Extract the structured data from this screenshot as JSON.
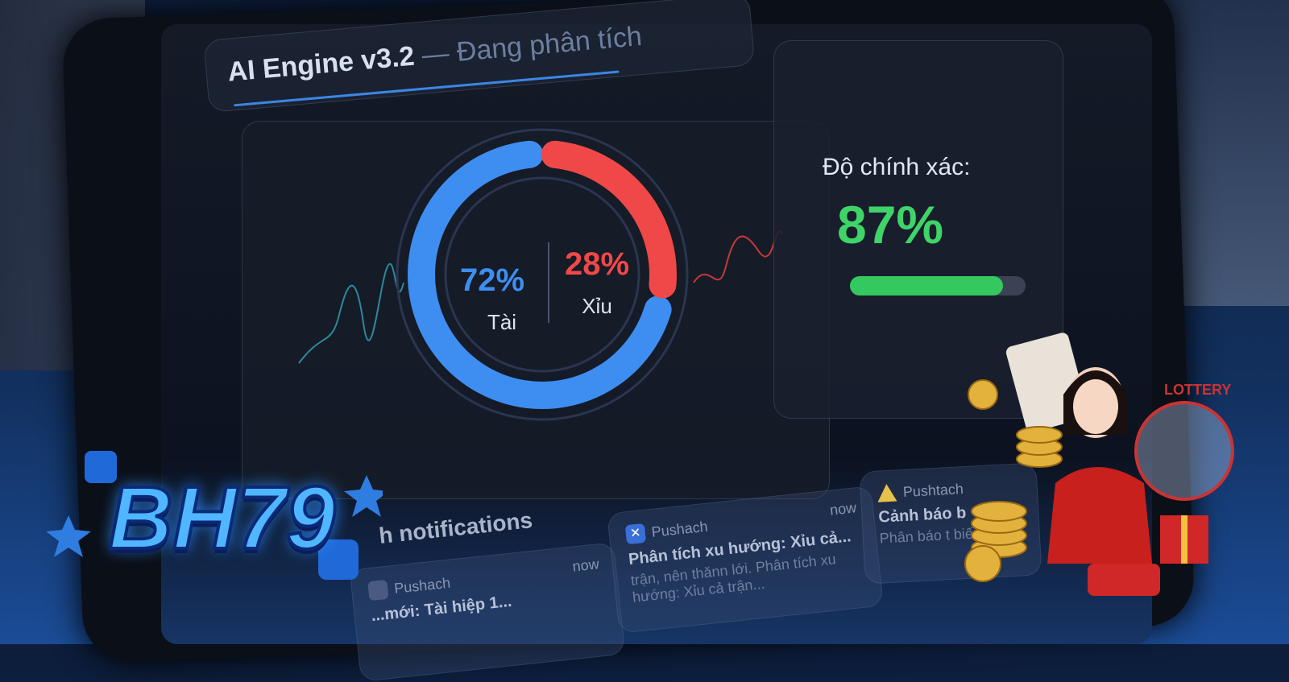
{
  "header": {
    "title": "AI Engine v3.2",
    "subtitle": "— Đang phân tích"
  },
  "prediction": {
    "tai": {
      "percent": 72,
      "label_value": "72%",
      "label": "Tài",
      "color": "#3d8ef0"
    },
    "xiu": {
      "percent": 28,
      "label_value": "28%",
      "label": "Xỉu",
      "color": "#f04848"
    }
  },
  "accuracy": {
    "label": "Độ chính xác:",
    "value": "87%",
    "fill_percent": 87,
    "color": "#34c85e"
  },
  "notifications": {
    "title": "h notifications",
    "cards": [
      {
        "app": "Pushach",
        "time": "now",
        "headline": "...mới: Tài hiệp 1...",
        "body": "",
        "icon": "app-icon"
      },
      {
        "app": "Pushach",
        "time": "now",
        "headline": "Phân tích xu hướng: Xỉu cả...",
        "body": "trận, nên thănn lới. Phân tích xu hướng: Xỉu cả trận...",
        "icon": "x-icon"
      },
      {
        "app": "Pushtach",
        "time": "",
        "headline": "Cảnh báo b",
        "body": "Phân báo t biến động",
        "icon": "warning-icon"
      }
    ]
  },
  "brand": {
    "logo": "BH79",
    "badge": "LOTTERY"
  }
}
